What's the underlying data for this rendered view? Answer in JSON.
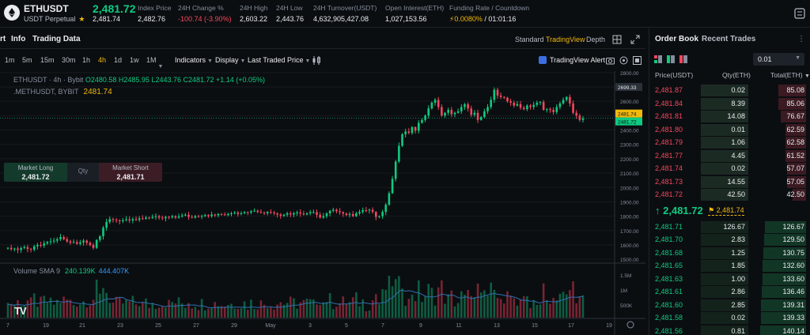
{
  "ticker": {
    "symbol": "ETHUSDT",
    "subtitle": "USDT Perpetual",
    "last_price": "2,481.72",
    "mark_price": "2,481.74",
    "stats": [
      {
        "key": "Index Price",
        "value": "2,482.76",
        "style": "normal"
      },
      {
        "key": "24H Change %",
        "value": "-100.74 (-3.90%)",
        "style": "red"
      },
      {
        "key": "24H High",
        "value": "2,603.22",
        "style": "normal"
      },
      {
        "key": "24H Low",
        "value": "2,443.76",
        "style": "normal"
      },
      {
        "key": "24H Turnover(USDT)",
        "value": "4,632,905,427.08",
        "style": "normal"
      },
      {
        "key": "Open Interest(ETH)",
        "value": "1,027,153.56",
        "style": "normal"
      },
      {
        "key": "Funding Rate / Countdown",
        "rate": "0.0080%",
        "countdown": "/ 01:01:16"
      }
    ]
  },
  "tabs": {
    "chart": "rt",
    "info": "Info",
    "trading_data": "Trading Data",
    "standard": "Standard",
    "tradingview": "TradingView",
    "depth": "Depth"
  },
  "toolbar": {
    "timeframes": [
      "1m",
      "5m",
      "15m",
      "30m",
      "1h",
      "4h",
      "1d",
      "1w",
      "1M"
    ],
    "active_timeframe": "4h",
    "indicators": "Indicators",
    "display": "Display",
    "last_traded_price": "Last Traded Price",
    "tv_alert": "TradingView Alert"
  },
  "legend": {
    "line1_prefix": "ETHUSDT · 4h · Bybit",
    "ohlc": "O2480.58 H2485.95 L2443.76 C2481.72 +1.14 (+0.05%)",
    "line2": ".METHUSDT, BYBIT",
    "line2_value": "2481.74"
  },
  "trade_box": {
    "long_label": "Market Long",
    "long_price": "2,481.72",
    "qty_label": "Qty",
    "short_label": "Market Short",
    "short_price": "2,481.71"
  },
  "volume_legend": {
    "label": "Volume SMA 9",
    "v1": "240.139K",
    "v2": "444.407K"
  },
  "chart_data": {
    "type": "candlestick",
    "title": "",
    "y_ticks": [
      "2800.00",
      "2700.00",
      "2600.00",
      "2500.00",
      "2400.00",
      "2300.00",
      "2200.00",
      "2100.00",
      "2000.00",
      "1900.00",
      "1800.00",
      "1700.00",
      "1600.00",
      "1500.00"
    ],
    "ylim": [
      1490,
      2810
    ],
    "price_labels": {
      "high": "2699.33",
      "mark": "2481.74",
      "last": "2481.72"
    },
    "current_price": 2481.72,
    "vol_ticks": [
      "1.5M",
      "1M",
      "500K"
    ],
    "x_ticks": [
      "7",
      "19",
      "21",
      "23",
      "25",
      "27",
      "29",
      "May",
      "3",
      "5",
      "7",
      "9",
      "11",
      "13",
      "15",
      "17",
      "19"
    ],
    "closes": [
      1580,
      1570,
      1575,
      1565,
      1578,
      1585,
      1572,
      1568,
      1590,
      1600,
      1595,
      1610,
      1620,
      1625,
      1630,
      1640,
      1655,
      1640,
      1625,
      1615,
      1620,
      1608,
      1618,
      1630,
      1615,
      1600,
      1580,
      1635,
      1660,
      1720,
      1760,
      1780,
      1775,
      1770,
      1765,
      1772,
      1778,
      1770,
      1780,
      1775,
      1785,
      1782,
      1790,
      1788,
      1795,
      1800,
      1790,
      1785,
      1795,
      1792,
      1800,
      1790,
      1798,
      1805,
      1810,
      1795,
      1790,
      1800,
      1796,
      1802,
      1808,
      1800,
      1812,
      1806,
      1815,
      1812,
      1808,
      1815,
      1820,
      1825,
      1815,
      1820,
      1828,
      1826,
      1835,
      1838,
      1830,
      1825,
      1820,
      1830,
      1825,
      1820,
      1812,
      1802,
      1810,
      1820,
      1812,
      1820,
      1826,
      1818,
      1812,
      1820,
      1828,
      1828,
      1810,
      1790,
      1800,
      1820,
      1838,
      1845,
      1835,
      1828,
      1818,
      1808,
      1815,
      1800,
      1820,
      1830,
      1842,
      1840,
      1845,
      1830,
      1795,
      1800,
      1830,
      1880,
      1960,
      2060,
      2180,
      2290,
      2370,
      2390,
      2380,
      2420,
      2395,
      2450,
      2470,
      2500,
      2550,
      2590,
      2610,
      2560,
      2500,
      2520,
      2540,
      2510,
      2520,
      2530,
      2560,
      2580,
      2550,
      2505,
      2520,
      2470,
      2490,
      2530,
      2560,
      2610,
      2680,
      2640,
      2630,
      2625,
      2600,
      2590,
      2570,
      2580,
      2555,
      2545,
      2570,
      2560,
      2575,
      2590,
      2595,
      2540,
      2545,
      2540,
      2525,
      2560,
      2585,
      2610,
      2630,
      2585,
      2520,
      2500,
      2470,
      2480
    ],
    "volume_max_label": "1.5M"
  },
  "orderbook": {
    "tab_active": "Order Book",
    "tab_inactive": "Recent Trades",
    "more": "⋮",
    "precision": "0.01",
    "headers": {
      "price": "Price(USDT)",
      "qty": "Qty(ETH)",
      "total": "Total(ETH)"
    },
    "asks": [
      {
        "price": "2,481.87",
        "qty": "0.02",
        "total": "85.08",
        "depth": 0.61
      },
      {
        "price": "2,481.84",
        "qty": "8.39",
        "total": "85.06",
        "depth": 0.61
      },
      {
        "price": "2,481.81",
        "qty": "14.08",
        "total": "76.67",
        "depth": 0.55
      },
      {
        "price": "2,481.80",
        "qty": "0.01",
        "total": "62.59",
        "depth": 0.45
      },
      {
        "price": "2,481.79",
        "qty": "1.06",
        "total": "62.58",
        "depth": 0.45
      },
      {
        "price": "2,481.77",
        "qty": "4.45",
        "total": "61.52",
        "depth": 0.44
      },
      {
        "price": "2,481.74",
        "qty": "0.02",
        "total": "57.07",
        "depth": 0.41
      },
      {
        "price": "2,481.73",
        "qty": "14.55",
        "total": "57.05",
        "depth": 0.41
      },
      {
        "price": "2,481.72",
        "qty": "42.50",
        "total": "42.50",
        "depth": 0.3
      }
    ],
    "mid_price": "2,481.72",
    "mark_price": "2,481.74",
    "bids": [
      {
        "price": "2,481.71",
        "qty": "126.67",
        "total": "126.67",
        "depth": 0.9
      },
      {
        "price": "2,481.70",
        "qty": "2.83",
        "total": "129.50",
        "depth": 0.92
      },
      {
        "price": "2,481.68",
        "qty": "1.25",
        "total": "130.75",
        "depth": 0.93
      },
      {
        "price": "2,481.65",
        "qty": "1.85",
        "total": "132.60",
        "depth": 0.94
      },
      {
        "price": "2,481.63",
        "qty": "1.00",
        "total": "133.60",
        "depth": 0.95
      },
      {
        "price": "2,481.61",
        "qty": "2.86",
        "total": "136.46",
        "depth": 0.97
      },
      {
        "price": "2,481.60",
        "qty": "2.85",
        "total": "139.31",
        "depth": 0.99
      },
      {
        "price": "2,481.58",
        "qty": "0.02",
        "total": "139.33",
        "depth": 0.99
      },
      {
        "price": "2,481.56",
        "qty": "0.81",
        "total": "140.14",
        "depth": 1.0
      }
    ]
  },
  "colors": {
    "up": "#0ecb81",
    "down": "#f6465d",
    "accent": "#f0b90b",
    "bg": "#0b0e11"
  }
}
